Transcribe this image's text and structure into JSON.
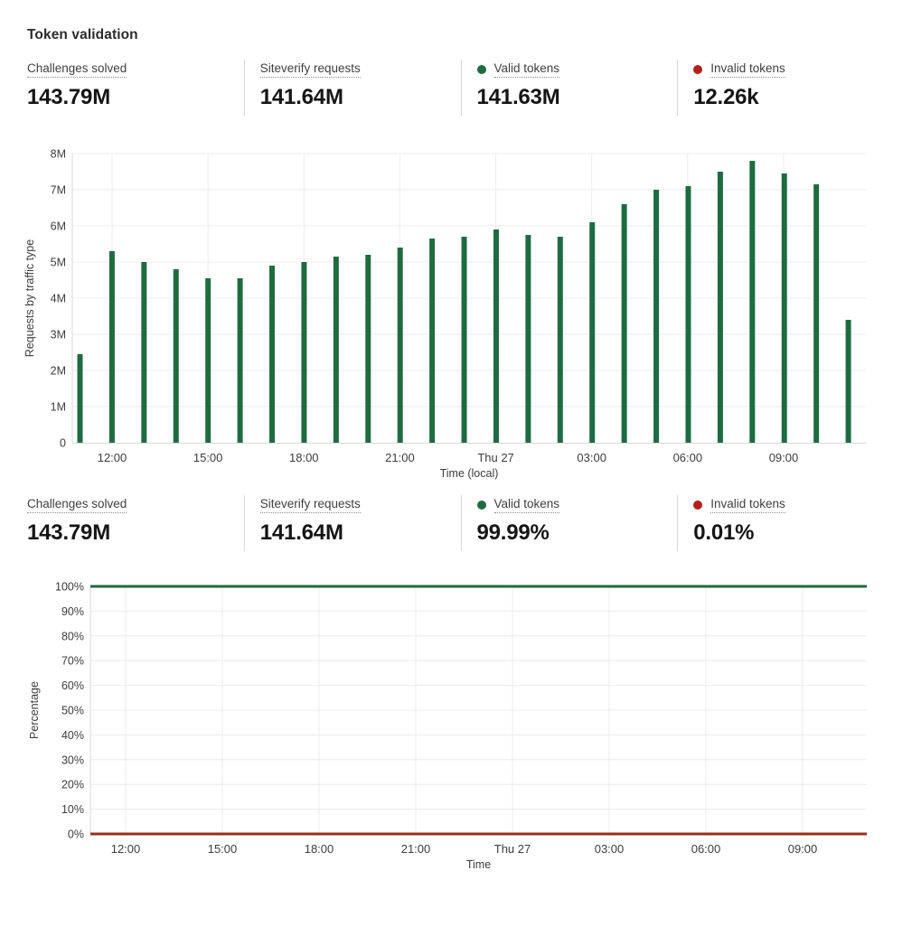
{
  "title": "Token validation",
  "colors": {
    "green": "#1f6b41",
    "red_line": "#943019",
    "red_dot": "#b22019",
    "gridline": "#ececec",
    "axis_line": "#d8d8d8"
  },
  "stats_top": {
    "items": [
      {
        "label": "Challenges solved",
        "value": "143.79M"
      },
      {
        "label": "Siteverify requests",
        "value": "141.64M"
      },
      {
        "label": "Valid tokens",
        "value": "141.63M",
        "dot": "#1f6b41"
      },
      {
        "label": "Invalid tokens",
        "value": "12.26k",
        "dot": "#b22019"
      }
    ]
  },
  "stats_bottom": {
    "items": [
      {
        "label": "Challenges solved",
        "value": "143.79M"
      },
      {
        "label": "Siteverify requests",
        "value": "141.64M"
      },
      {
        "label": "Valid tokens",
        "value": "99.99%",
        "dot": "#1f6b41"
      },
      {
        "label": "Invalid tokens",
        "value": "0.01%",
        "dot": "#b22019"
      }
    ]
  },
  "chart_data": [
    {
      "type": "bar",
      "title": "",
      "xlabel": "Time (local)",
      "ylabel": "Requests by traffic type",
      "ylim": [
        0,
        8000000
      ],
      "ytick_labels": [
        "0",
        "1M",
        "2M",
        "3M",
        "4M",
        "5M",
        "6M",
        "7M",
        "8M"
      ],
      "xtick_labels": [
        "12:00",
        "15:00",
        "18:00",
        "21:00",
        "Thu 27",
        "03:00",
        "06:00",
        "09:00"
      ],
      "grid": true,
      "legend": "none",
      "bar_color": "#1f6b41",
      "bar_interval": "hourly",
      "values_millions": [
        2.45,
        5.3,
        5.0,
        4.8,
        4.55,
        4.55,
        4.9,
        5.0,
        5.15,
        5.2,
        5.4,
        5.65,
        5.7,
        5.9,
        5.75,
        5.7,
        6.1,
        6.6,
        7.0,
        7.1,
        7.5,
        7.8,
        7.45,
        7.15,
        3.4
      ]
    },
    {
      "type": "line",
      "title": "",
      "xlabel": "Time",
      "ylabel": "Percentage",
      "ylim": [
        0,
        100
      ],
      "ytick_labels": [
        "0%",
        "10%",
        "20%",
        "30%",
        "40%",
        "50%",
        "60%",
        "70%",
        "80%",
        "90%",
        "100%"
      ],
      "xtick_labels": [
        "12:00",
        "15:00",
        "18:00",
        "21:00",
        "Thu 27",
        "03:00",
        "06:00",
        "09:00"
      ],
      "grid": true,
      "legend": "none",
      "series": [
        {
          "name": "Valid tokens",
          "constant_value": 99.99,
          "color": "#1f6b41"
        },
        {
          "name": "Invalid tokens",
          "constant_value": 0.01,
          "color": "#943019"
        }
      ]
    }
  ]
}
